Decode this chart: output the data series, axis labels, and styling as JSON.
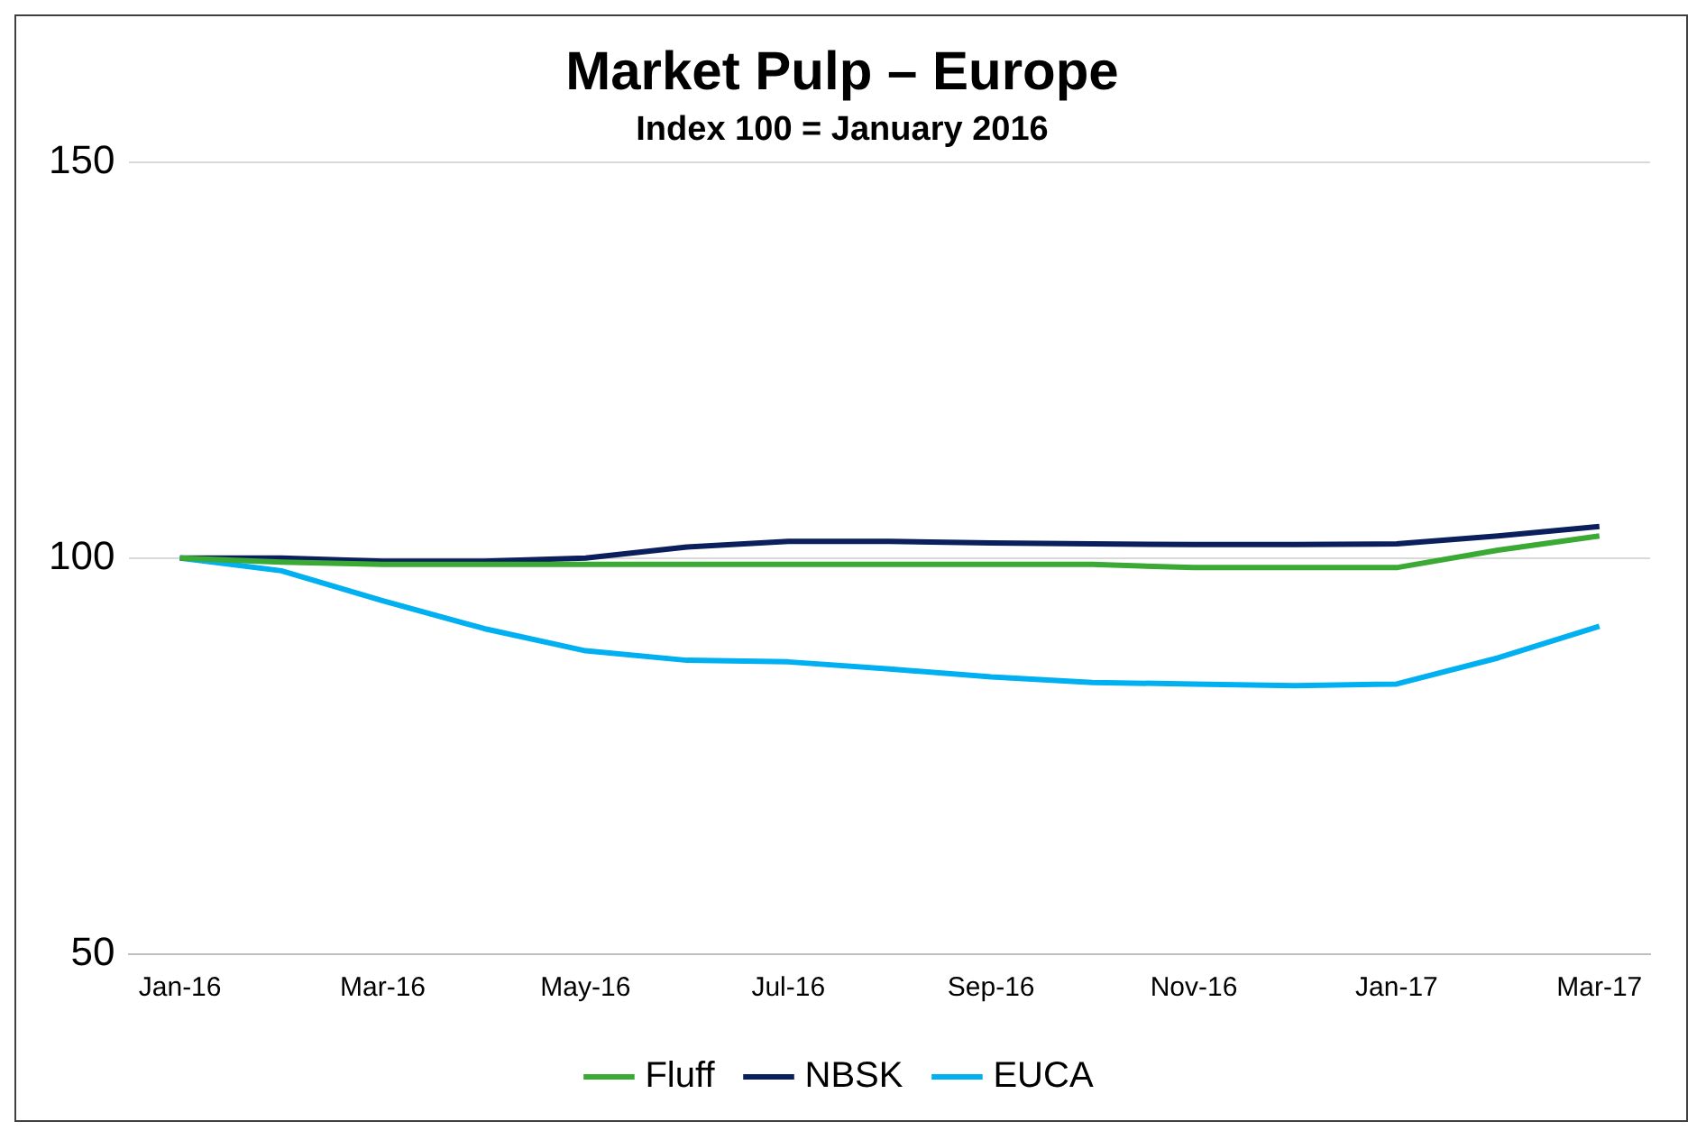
{
  "chart_data": {
    "type": "line",
    "title": "Market Pulp – Europe",
    "subtitle": "Index 100 = January 2016",
    "categories": [
      "Jan-16",
      null,
      "Mar-16",
      null,
      "May-16",
      null,
      "Jul-16",
      null,
      "Sep-16",
      null,
      "Nov-16",
      null,
      "Jan-17",
      null,
      "Mar-17"
    ],
    "series": [
      {
        "name": "Fluff",
        "color": "#3aaa35",
        "values": [
          100,
          99.5,
          99.2,
          99.2,
          99.2,
          99.2,
          99.2,
          99.2,
          99.2,
          99.2,
          98.8,
          98.8,
          98.8,
          101,
          102.8
        ]
      },
      {
        "name": "NBSK",
        "color": "#0a1f5c",
        "values": [
          100,
          100,
          99.6,
          99.6,
          100,
          101.4,
          102.1,
          102.1,
          101.9,
          101.8,
          101.7,
          101.7,
          101.8,
          102.8,
          104
        ]
      },
      {
        "name": "EUCA",
        "color": "#00b0f0",
        "values": [
          100,
          98.4,
          94.6,
          91.1,
          88.3,
          87.1,
          86.9,
          86,
          85,
          84.3,
          84.1,
          83.9,
          84.1,
          87.4,
          91.4
        ]
      }
    ],
    "ylim": [
      50,
      150
    ],
    "yticks": [
      50,
      100,
      150
    ],
    "grid": "y",
    "legend": "bottom",
    "marker": "none",
    "line_style": "solid"
  }
}
